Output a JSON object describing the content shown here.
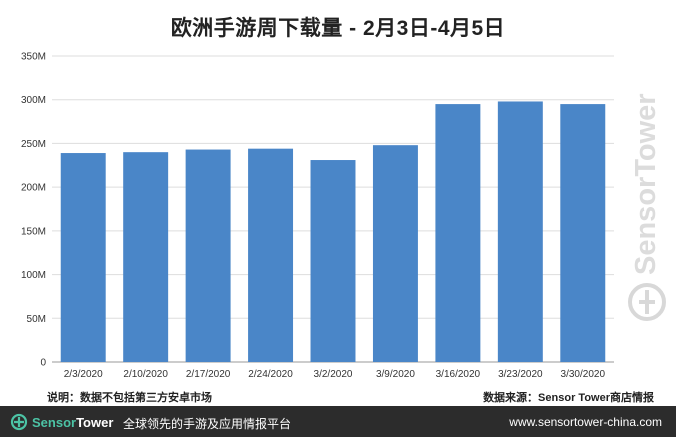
{
  "chart_data": {
    "type": "bar",
    "title": "欧洲手游周下载量 - 2月3日-4月5日",
    "categories": [
      "2/3/2020",
      "2/10/2020",
      "2/17/2020",
      "2/24/2020",
      "3/2/2020",
      "3/9/2020",
      "3/16/2020",
      "3/23/2020",
      "3/30/2020"
    ],
    "values": [
      239,
      240,
      243,
      244,
      231,
      248,
      295,
      298,
      295
    ],
    "ylim": [
      0,
      350
    ],
    "yticks": [
      "0",
      "50M",
      "100M",
      "150M",
      "200M",
      "250M",
      "300M",
      "350M"
    ],
    "grid": true,
    "bar_color": "#4a86c8",
    "xlabel": "",
    "ylabel": ""
  },
  "notes": {
    "left": "说明：数据不包括第三方安卓市场",
    "right": "数据来源：Sensor Tower商店情报"
  },
  "footer": {
    "brand_a": "Sensor",
    "brand_b": "Tower",
    "slogan": "全球领先的手游及应用情报平台",
    "url": "www.sensortower-china.com",
    "icon": "sensortower-logo-icon",
    "background": "#2c2c2c",
    "accent": "#4cc3a5"
  },
  "watermark": {
    "text": "SensorTower",
    "icon": "sensortower-logo-icon"
  }
}
